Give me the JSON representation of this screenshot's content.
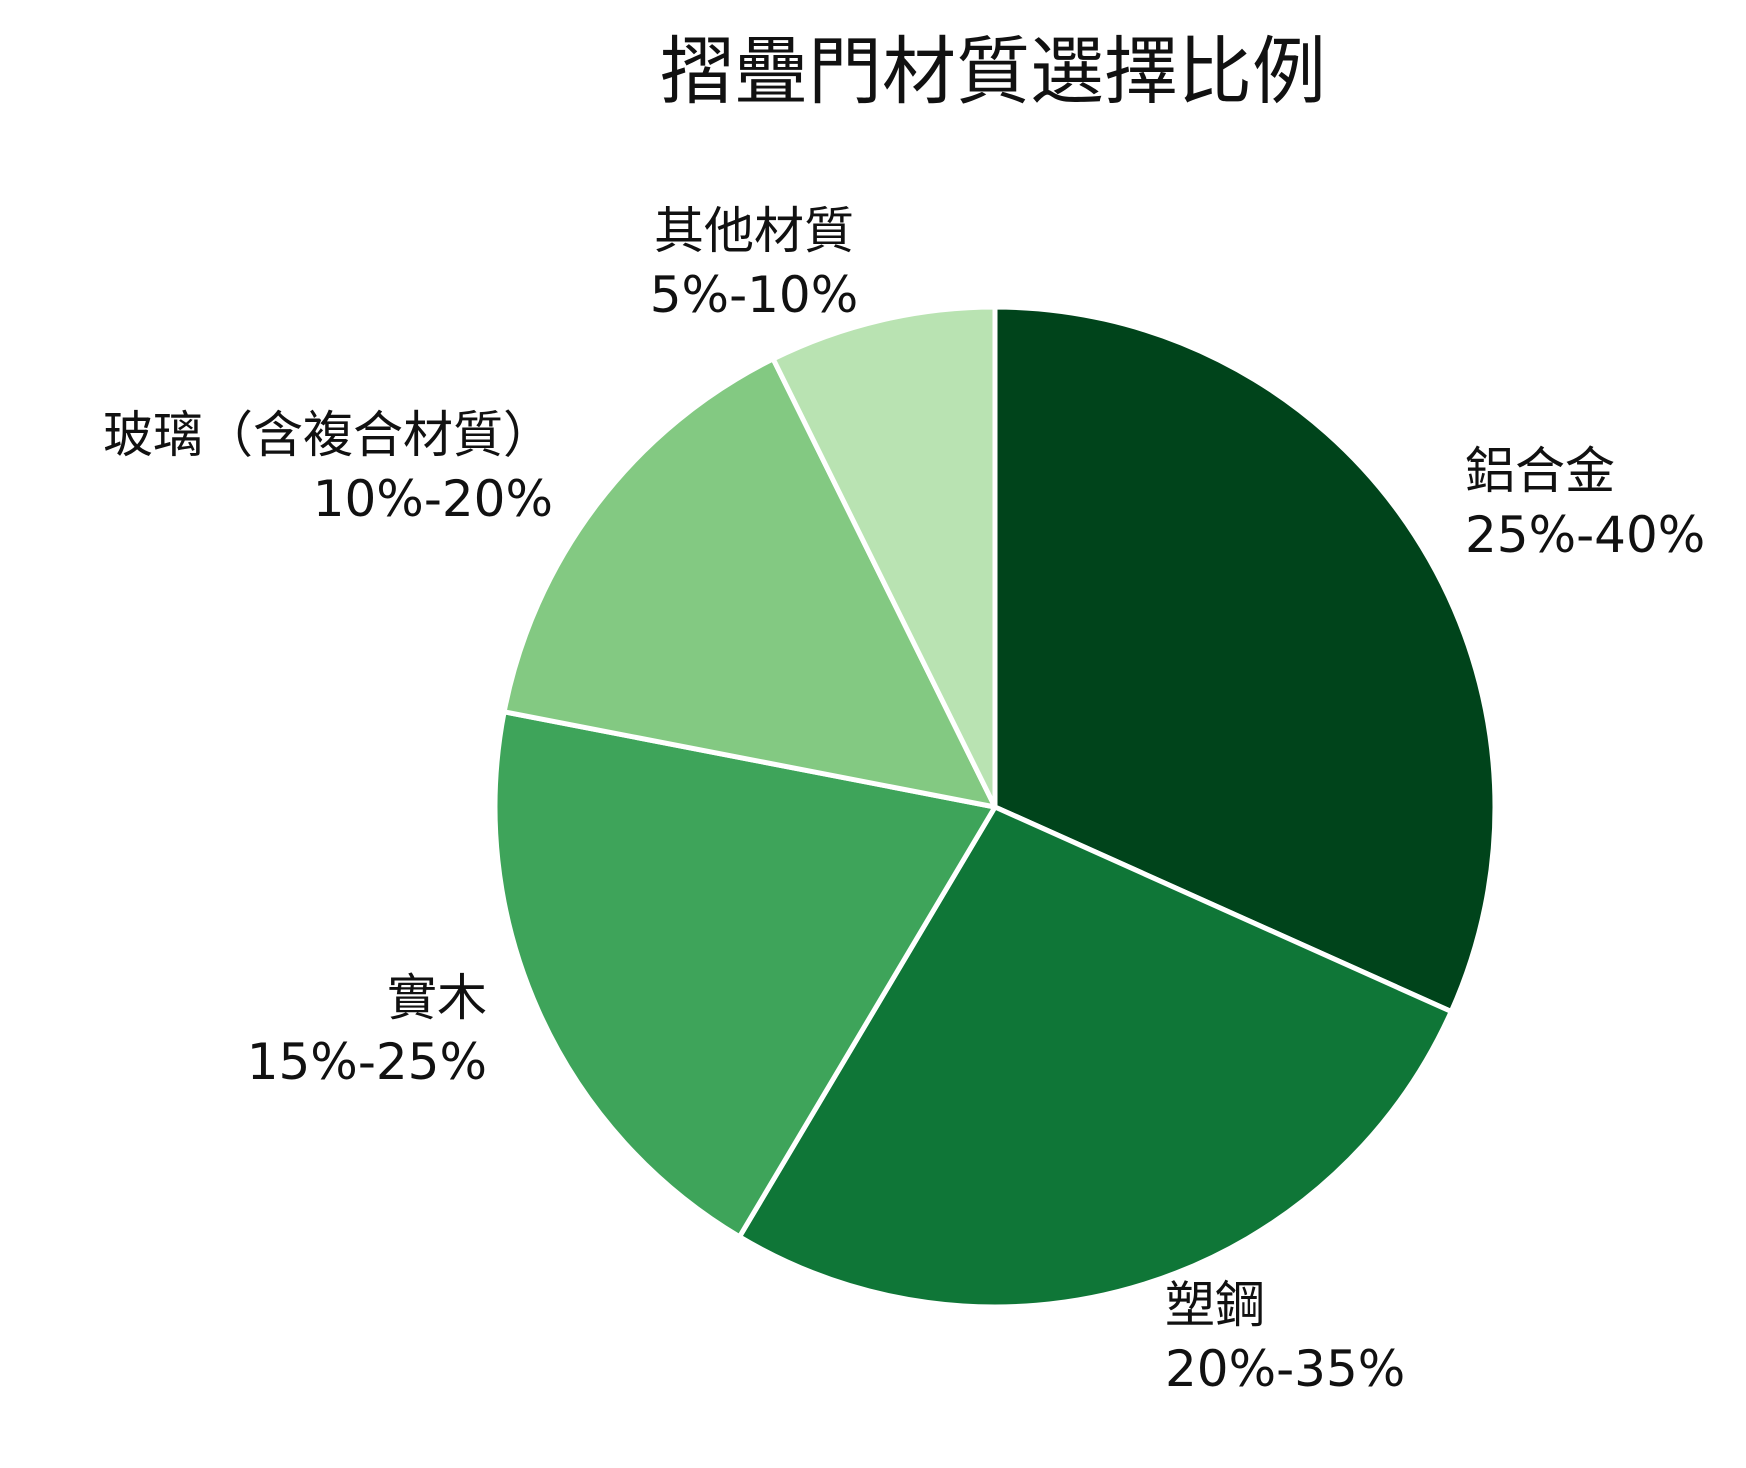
{
  "chart_data": {
    "type": "pie",
    "title": "摺疊門材質選擇比例",
    "slices": [
      {
        "name": "鋁合金",
        "range": "25%-40%",
        "value": 32.5,
        "color": "#00441b"
      },
      {
        "name": "塑鋼",
        "range": "20%-35%",
        "value": 27.5,
        "color": "#0f7637"
      },
      {
        "name": "實木",
        "range": "15%-25%",
        "value": 20,
        "color": "#3ea45a"
      },
      {
        "name": "玻璃（含複合材質）",
        "range": "10%-20%",
        "value": 15,
        "color": "#83c982"
      },
      {
        "name": "其他材質",
        "range": "5%-10%",
        "value": 7.5,
        "color": "#b9e3b2"
      }
    ],
    "start_angle": "12 o'clock",
    "direction": "clockwise",
    "legend": "none"
  }
}
